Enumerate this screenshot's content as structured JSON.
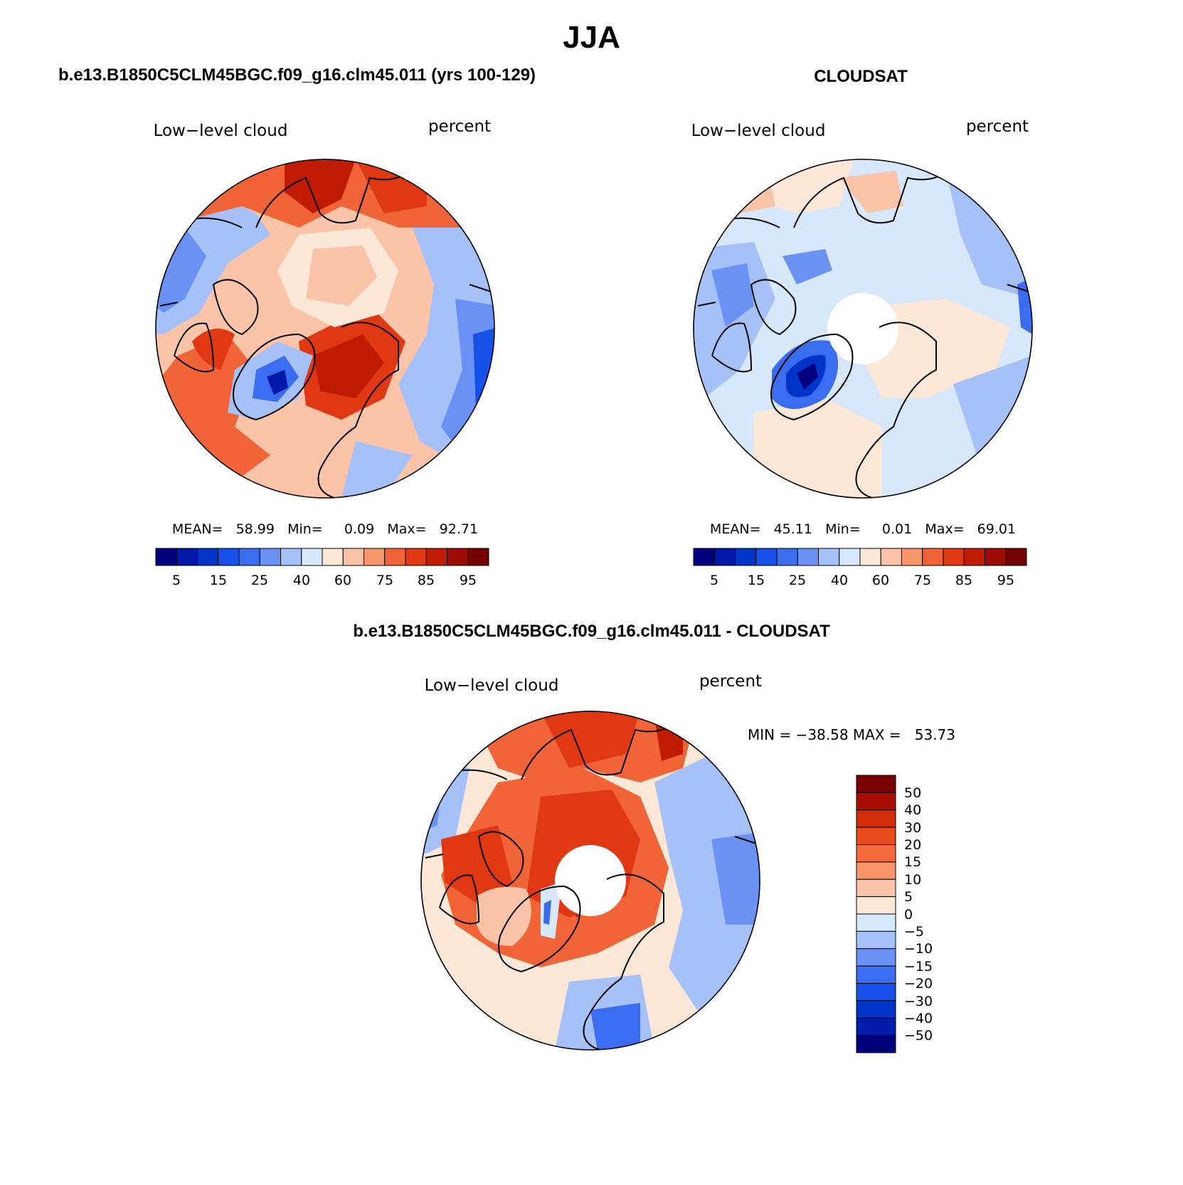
{
  "title": "JJA",
  "palette": {
    "abs": [
      "#00007f",
      "#0018a8",
      "#0034c8",
      "#1650e8",
      "#3a6cf0",
      "#6a92f4",
      "#a6c0f8",
      "#d8e8fc",
      "#fde8d8",
      "#fbc4a8",
      "#f8946c",
      "#f06438",
      "#e03812",
      "#c01c04",
      "#9c0c02",
      "#760000"
    ],
    "diff": [
      "#00007f",
      "#001ca8",
      "#0034c8",
      "#1650e8",
      "#3a6cf0",
      "#6a92f4",
      "#a6c0f8",
      "#d8e8fc",
      "#fde8d8",
      "#fbc4a8",
      "#f8946c",
      "#f46a3c",
      "#e84a1a",
      "#d02c08",
      "#a80e02",
      "#780000"
    ]
  },
  "panels": {
    "model": {
      "title": "b.e13.B1850C5CLM45BGC.f09_g16.clm45.011 (yrs 100-129)",
      "variable": "Low−level cloud",
      "units": "percent",
      "stats_line": "MEAN=   58.99   Min=     0.09   Max=   92.71",
      "colorbar_labels": [
        "5",
        "15",
        "25",
        "40",
        "60",
        "75",
        "85",
        "95"
      ]
    },
    "obs": {
      "title": "CLOUDSAT",
      "variable": "Low−level cloud",
      "units": "percent",
      "stats_line": "MEAN=   45.11   Min=     0.01   Max=   69.01",
      "colorbar_labels": [
        "5",
        "15",
        "25",
        "40",
        "60",
        "75",
        "85",
        "95"
      ]
    },
    "diff": {
      "title": "b.e13.B1850C5CLM45BGC.f09_g16.clm45.011 - CLOUDSAT",
      "variable": "Low−level cloud",
      "units": "percent",
      "minmax": "MIN = −38.58 MAX =   53.73",
      "colorbar_labels": [
        "50",
        "40",
        "30",
        "20",
        "15",
        "10",
        "5",
        "0",
        "−5",
        "−10",
        "−15",
        "−20",
        "−30",
        "−40",
        "−50"
      ]
    }
  },
  "chart_data": [
    {
      "type": "map",
      "projection": "polar stereographic (north pole)",
      "title": "b.e13.B1850C5CLM45BGC.f09_g16.clm45.011 (yrs 100-129)",
      "variable": "Low-level cloud",
      "units": "percent",
      "mean": 58.99,
      "min": 0.09,
      "max": 92.71,
      "contour_levels": [
        5,
        10,
        15,
        20,
        25,
        30,
        40,
        50,
        60,
        70,
        75,
        80,
        85,
        90,
        95
      ]
    },
    {
      "type": "map",
      "projection": "polar stereographic (north pole)",
      "title": "CLOUDSAT",
      "variable": "Low-level cloud",
      "units": "percent",
      "mean": 45.11,
      "min": 0.01,
      "max": 69.01,
      "contour_levels": [
        5,
        10,
        15,
        20,
        25,
        30,
        40,
        50,
        60,
        70,
        75,
        80,
        85,
        90,
        95
      ]
    },
    {
      "type": "map",
      "projection": "polar stereographic (north pole)",
      "title": "b.e13.B1850C5CLM45BGC.f09_g16.clm45.011 - CLOUDSAT",
      "variable": "Low-level cloud",
      "units": "percent",
      "min": -38.58,
      "max": 53.73,
      "contour_levels": [
        -50,
        -40,
        -30,
        -20,
        -15,
        -10,
        -5,
        0,
        5,
        10,
        15,
        20,
        30,
        40,
        50
      ]
    }
  ]
}
